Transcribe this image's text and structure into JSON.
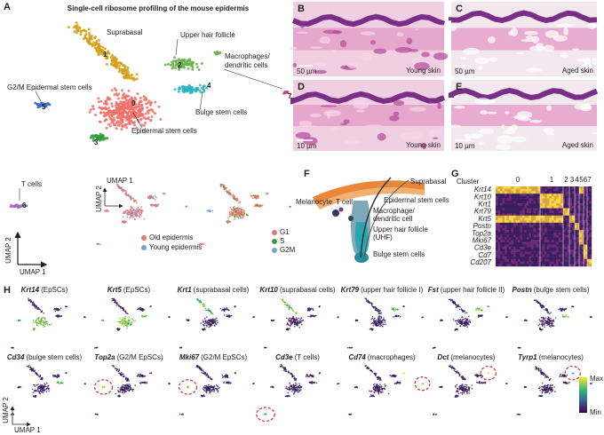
{
  "panel_a": {
    "letter": "A",
    "title": "Single-cell ribosome profiling of the mouse epidermis",
    "cluster_ids": [
      "0",
      "1",
      "2",
      "3",
      "4",
      "5",
      "6",
      "7"
    ],
    "labels": {
      "suprabasal": "Suprabasal",
      "upper_hair_follicle": "Upper hair follicle",
      "macrophages": [
        "Macrophages/",
        "dendritic cells"
      ],
      "g2m": "G2/M Epidermal stem cells",
      "bulge": "Bulge stem cells",
      "epidermal": "Epidermal stem cells",
      "t_cells": "T cells"
    },
    "axis_x": "UMAP 1",
    "axis_y": "UMAP 2",
    "inset_axis_x": "UMAP 1",
    "inset_axis_y": "UMAP 2",
    "condition_legend": [
      "Old epidermis",
      "Young epidermis"
    ],
    "phase_legend": [
      "G1",
      "S",
      "G2M"
    ]
  },
  "histology": [
    {
      "letter": "B",
      "scale_bar": "50 µm",
      "caption": "Young skin"
    },
    {
      "letter": "C",
      "scale_bar": "50 µm",
      "caption": "Aged skin"
    },
    {
      "letter": "D",
      "scale_bar": "10 µm",
      "caption": "Young skin"
    },
    {
      "letter": "E",
      "scale_bar": "10 µm",
      "caption": "Aged skin"
    }
  ],
  "panel_f": {
    "letter": "F",
    "labels": {
      "suprabasal": "Suprabasal",
      "epidermal": "Epidermal stem cells",
      "melanocyte": "Melanocyte",
      "t_cell": "T cell",
      "macrophage": [
        "Macrophage/",
        "dendritic cell"
      ],
      "uhf": [
        "Upper hair follicle",
        "(UHF)"
      ],
      "bulge": "Bulge stem cells"
    }
  },
  "panel_g": {
    "letter": "G",
    "cluster_title": "Cluster",
    "clusters": [
      "0",
      "1",
      "2",
      "3",
      "4",
      "5",
      "6",
      "7"
    ],
    "genes": [
      "Krt14",
      "Krt10",
      "Krt1",
      "Krt79",
      "Krt5",
      "Postn",
      "Top2a",
      "Mki67",
      "Cd3e",
      "Cd7",
      "Cd207"
    ]
  },
  "panel_h": {
    "letter": "H",
    "panels": [
      {
        "gene": "Krt14",
        "desc": "(EpSCs)"
      },
      {
        "gene": "Krt5",
        "desc": "(EpSCs)"
      },
      {
        "gene": "Krt1",
        "desc": "(suprabasal cells)"
      },
      {
        "gene": "Krt10",
        "desc": "(suprabasal cells)"
      },
      {
        "gene": "Krt79",
        "desc": "(upper hair follicle I)"
      },
      {
        "gene": "Fst",
        "desc": "(upper hair follicle II)"
      },
      {
        "gene": "Postn",
        "desc": "(bulge stem cells)"
      },
      {
        "gene": "Cd34",
        "desc": "(bulge stem cells)"
      },
      {
        "gene": "Top2a",
        "desc": "(G2/M EpSCs)"
      },
      {
        "gene": "Mki67",
        "desc": "(G2/M EpSCs)"
      },
      {
        "gene": "Cd3e",
        "desc": "(T cells)"
      },
      {
        "gene": "Cd74",
        "desc": "(macrophages)"
      },
      {
        "gene": "Dct",
        "desc": "(melanocytes)"
      },
      {
        "gene": "Tyrp1",
        "desc": "(melanocytes)"
      }
    ],
    "colorbar_max": "Max",
    "colorbar_min": "Min",
    "axis_x": "UMAP 1",
    "axis_y": "UMAP 2"
  }
}
